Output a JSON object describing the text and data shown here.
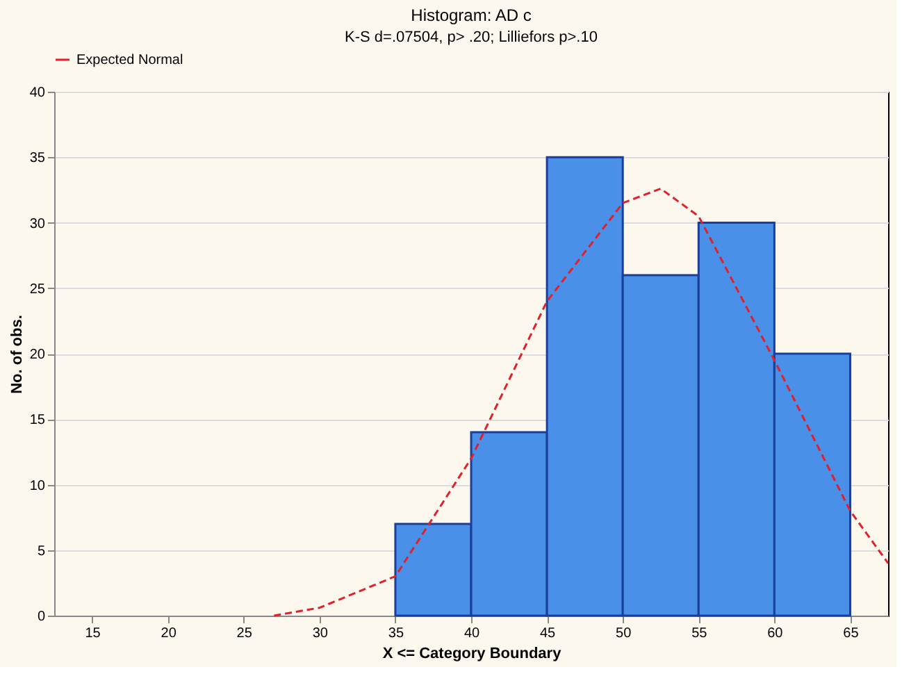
{
  "chart_data": {
    "type": "histogram",
    "title": "Histogram: AD c",
    "subtitle": "K-S d=.07504, p> .20; Lilliefors p>.10",
    "xlabel": "X <= Category Boundary",
    "ylabel": "No. of obs.",
    "bins": [
      35,
      40,
      45,
      50,
      55,
      60,
      65
    ],
    "values": [
      7,
      14,
      35,
      26,
      30,
      20
    ],
    "color": "#4a90e8",
    "series": [
      {
        "name": "Expected Normal",
        "type": "line",
        "color": "#e0202a",
        "line_style": "dashed",
        "x": [
          27,
          30,
          35,
          40,
          45,
          50,
          52.5,
          55,
          60,
          65,
          67.5
        ],
        "values": [
          0,
          0.6,
          3,
          12,
          24,
          31.5,
          32.6,
          30.5,
          19.5,
          8,
          4
        ]
      }
    ],
    "xlim": [
      12.5,
      67.5
    ],
    "xticks": [
      15,
      20,
      25,
      30,
      35,
      40,
      45,
      50,
      55,
      60,
      65
    ],
    "ylim": [
      0,
      40
    ],
    "yticks": [
      0,
      5,
      10,
      15,
      20,
      25,
      30,
      35,
      40
    ],
    "grid": "y",
    "legend": "top"
  }
}
